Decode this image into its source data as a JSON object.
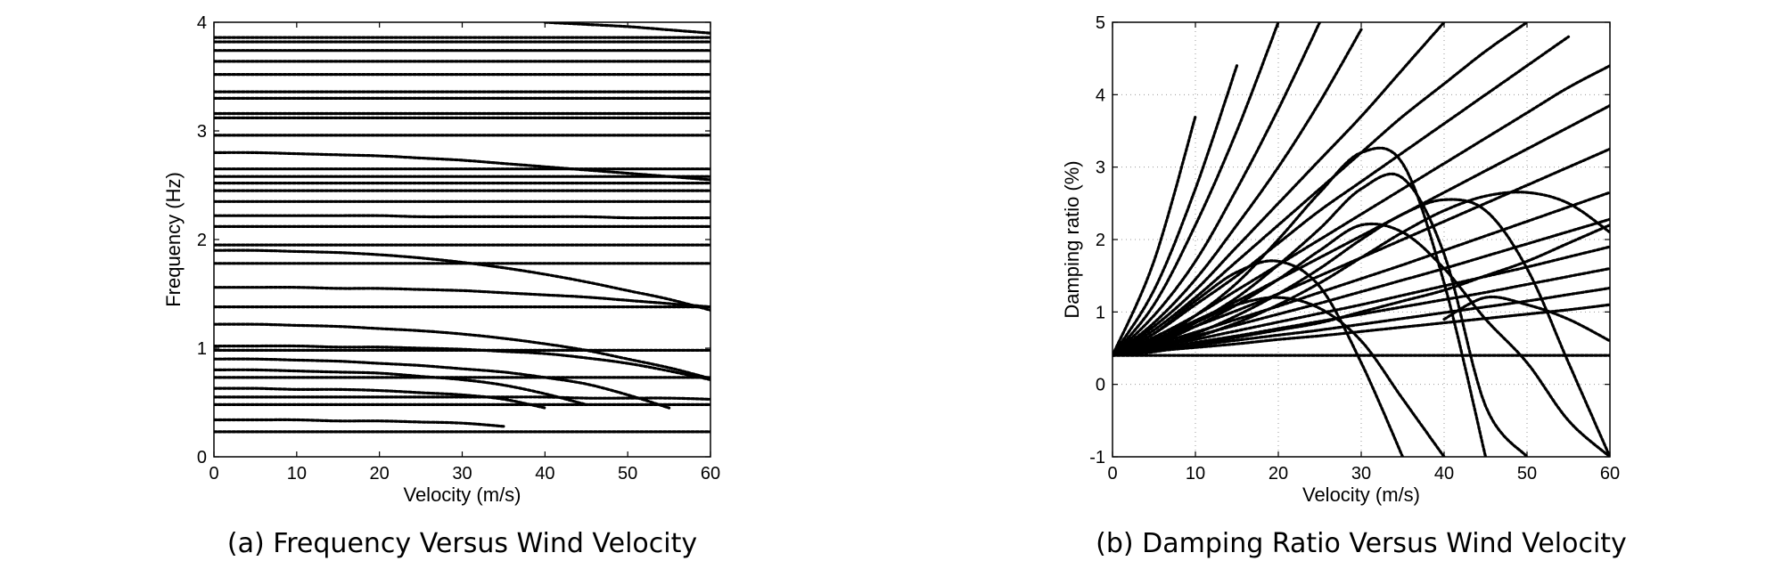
{
  "chart_data": [
    {
      "type": "line",
      "caption": "(a) Frequency Versus Wind Velocity",
      "xlabel": "Velocity (m/s)",
      "ylabel": "Frequency (Hz)",
      "xlim": [
        0,
        60
      ],
      "ylim": [
        0,
        4
      ],
      "xticks": [
        "0",
        "10",
        "20",
        "30",
        "40",
        "50",
        "60"
      ],
      "yticks": [
        "0",
        "1",
        "2",
        "3",
        "4"
      ],
      "grid": false,
      "marker": "dot",
      "x": [
        0,
        5,
        10,
        15,
        20,
        25,
        30,
        35,
        40,
        45,
        50,
        55,
        60
      ],
      "series": [
        {
          "values": [
            0.23,
            0.23,
            0.23,
            0.23,
            0.23,
            0.23,
            0.23,
            0.23,
            0.23,
            0.23,
            0.23,
            0.23,
            0.23
          ]
        },
        {
          "values": [
            0.34,
            0.34,
            0.34,
            0.33,
            0.33,
            0.32,
            0.31,
            0.28,
            null,
            null,
            null,
            null,
            null
          ]
        },
        {
          "values": [
            0.48,
            0.48,
            0.48,
            0.48,
            0.48,
            0.48,
            0.48,
            0.48,
            0.48,
            0.48,
            0.48,
            0.48,
            0.48
          ]
        },
        {
          "values": [
            0.55,
            0.55,
            0.55,
            0.55,
            0.55,
            0.55,
            0.55,
            0.55,
            0.55,
            0.54,
            0.54,
            0.54,
            0.53
          ]
        },
        {
          "values": [
            0.63,
            0.63,
            0.62,
            0.62,
            0.61,
            0.59,
            0.57,
            0.53,
            0.45,
            null,
            null,
            null,
            null
          ]
        },
        {
          "values": [
            0.73,
            0.73,
            0.73,
            0.73,
            0.73,
            0.73,
            0.73,
            0.73,
            0.73,
            0.73,
            0.73,
            0.73,
            0.73
          ]
        },
        {
          "values": [
            0.8,
            0.8,
            0.79,
            0.78,
            0.77,
            0.74,
            0.71,
            0.66,
            0.58,
            0.48,
            null,
            null,
            null
          ]
        },
        {
          "values": [
            0.9,
            0.9,
            0.89,
            0.88,
            0.86,
            0.84,
            0.81,
            0.78,
            0.73,
            0.67,
            0.57,
            0.45,
            null
          ]
        },
        {
          "values": [
            0.98,
            0.98,
            0.98,
            0.98,
            0.98,
            0.98,
            0.98,
            0.98,
            0.98,
            0.98,
            0.98,
            0.98,
            0.98
          ]
        },
        {
          "values": [
            1.02,
            1.02,
            1.02,
            1.01,
            1.01,
            1.0,
            0.99,
            0.97,
            0.95,
            0.91,
            0.86,
            0.79,
            0.71
          ]
        },
        {
          "values": [
            1.22,
            1.22,
            1.21,
            1.2,
            1.18,
            1.16,
            1.13,
            1.09,
            1.04,
            0.98,
            0.9,
            0.82,
            0.72
          ]
        },
        {
          "values": [
            1.38,
            1.38,
            1.38,
            1.38,
            1.38,
            1.38,
            1.38,
            1.38,
            1.38,
            1.38,
            1.38,
            1.38,
            1.38
          ]
        },
        {
          "values": [
            1.56,
            1.56,
            1.56,
            1.55,
            1.55,
            1.54,
            1.53,
            1.51,
            1.49,
            1.47,
            1.44,
            1.41,
            1.38
          ]
        },
        {
          "values": [
            1.78,
            1.78,
            1.78,
            1.78,
            1.78,
            1.78,
            1.78,
            1.78,
            1.78,
            1.78,
            1.78,
            1.78,
            1.78
          ]
        },
        {
          "values": [
            1.9,
            1.9,
            1.89,
            1.88,
            1.86,
            1.83,
            1.79,
            1.74,
            1.68,
            1.61,
            1.53,
            1.45,
            1.35
          ]
        },
        {
          "values": [
            1.95,
            1.95,
            1.95,
            1.95,
            1.95,
            1.95,
            1.95,
            1.95,
            1.95,
            1.95,
            1.95,
            1.95,
            1.95
          ]
        },
        {
          "values": [
            2.12,
            2.12,
            2.12,
            2.12,
            2.12,
            2.12,
            2.12,
            2.12,
            2.12,
            2.12,
            2.12,
            2.12,
            2.12
          ]
        },
        {
          "values": [
            2.22,
            2.22,
            2.22,
            2.22,
            2.22,
            2.21,
            2.21,
            2.21,
            2.21,
            2.21,
            2.2,
            2.2,
            2.2
          ]
        },
        {
          "values": [
            2.35,
            2.35,
            2.35,
            2.35,
            2.35,
            2.35,
            2.35,
            2.35,
            2.35,
            2.35,
            2.35,
            2.35,
            2.35
          ]
        },
        {
          "values": [
            2.45,
            2.45,
            2.45,
            2.45,
            2.45,
            2.45,
            2.45,
            2.45,
            2.45,
            2.45,
            2.45,
            2.45,
            2.45
          ]
        },
        {
          "values": [
            2.52,
            2.52,
            2.52,
            2.52,
            2.52,
            2.52,
            2.52,
            2.52,
            2.52,
            2.52,
            2.52,
            2.52,
            2.52
          ]
        },
        {
          "values": [
            2.58,
            2.58,
            2.58,
            2.58,
            2.58,
            2.58,
            2.58,
            2.58,
            2.58,
            2.58,
            2.58,
            2.58,
            2.58
          ]
        },
        {
          "values": [
            2.65,
            2.65,
            2.65,
            2.65,
            2.65,
            2.65,
            2.65,
            2.65,
            2.65,
            2.65,
            2.65,
            2.65,
            2.65
          ]
        },
        {
          "values": [
            2.8,
            2.8,
            2.79,
            2.78,
            2.77,
            2.75,
            2.73,
            2.7,
            2.67,
            2.64,
            2.61,
            2.58,
            2.55
          ]
        },
        {
          "values": [
            2.96,
            2.96,
            2.96,
            2.96,
            2.96,
            2.96,
            2.96,
            2.96,
            2.96,
            2.96,
            2.96,
            2.96,
            2.96
          ]
        },
        {
          "values": [
            3.12,
            3.12,
            3.12,
            3.12,
            3.12,
            3.12,
            3.12,
            3.12,
            3.12,
            3.12,
            3.12,
            3.12,
            3.12
          ]
        },
        {
          "values": [
            3.16,
            3.16,
            3.16,
            3.16,
            3.16,
            3.16,
            3.16,
            3.16,
            3.16,
            3.16,
            3.16,
            3.16,
            3.16
          ]
        },
        {
          "values": [
            3.3,
            3.3,
            3.3,
            3.3,
            3.3,
            3.3,
            3.3,
            3.3,
            3.3,
            3.3,
            3.3,
            3.3,
            3.3
          ]
        },
        {
          "values": [
            3.36,
            3.36,
            3.36,
            3.36,
            3.36,
            3.36,
            3.36,
            3.36,
            3.36,
            3.36,
            3.36,
            3.36,
            3.36
          ]
        },
        {
          "values": [
            3.52,
            3.52,
            3.52,
            3.52,
            3.52,
            3.52,
            3.52,
            3.52,
            3.52,
            3.52,
            3.52,
            3.52,
            3.52
          ]
        },
        {
          "values": [
            3.64,
            3.64,
            3.64,
            3.64,
            3.64,
            3.64,
            3.64,
            3.64,
            3.64,
            3.64,
            3.64,
            3.64,
            3.64
          ]
        },
        {
          "values": [
            3.74,
            3.74,
            3.74,
            3.74,
            3.74,
            3.74,
            3.74,
            3.74,
            3.74,
            3.74,
            3.74,
            3.74,
            3.74
          ]
        },
        {
          "values": [
            3.82,
            3.82,
            3.82,
            3.82,
            3.82,
            3.82,
            3.82,
            3.82,
            3.82,
            3.82,
            3.82,
            3.82,
            3.82
          ]
        },
        {
          "values": [
            3.86,
            3.86,
            3.86,
            3.86,
            3.86,
            3.86,
            3.86,
            3.86,
            3.86,
            3.86,
            3.86,
            3.86,
            3.86
          ]
        },
        {
          "values": [
            null,
            null,
            null,
            null,
            null,
            null,
            null,
            null,
            4.0,
            3.98,
            3.96,
            3.93,
            3.9
          ]
        }
      ]
    },
    {
      "type": "line",
      "caption": "(b) Damping Ratio Versus Wind Velocity",
      "xlabel": "Velocity (m/s)",
      "ylabel": "Damping ratio (%)",
      "xlim": [
        0,
        60
      ],
      "ylim": [
        -1,
        5
      ],
      "xticks": [
        "0",
        "10",
        "20",
        "30",
        "40",
        "50",
        "60"
      ],
      "yticks": [
        "-1",
        "0",
        "1",
        "2",
        "3",
        "4",
        "5"
      ],
      "grid": true,
      "marker": "dot",
      "x": [
        0,
        5,
        10,
        15,
        20,
        25,
        30,
        35,
        40,
        45,
        50,
        55,
        60
      ],
      "series": [
        {
          "values": [
            0.4,
            0.4,
            0.4,
            0.4,
            0.4,
            0.4,
            0.4,
            0.4,
            0.4,
            0.4,
            0.4,
            0.4,
            0.4
          ]
        },
        {
          "values": [
            0.4,
            1.7,
            3.7,
            null,
            null,
            null,
            null,
            null,
            null,
            null,
            null,
            null,
            null
          ]
        },
        {
          "values": [
            0.4,
            1.3,
            2.7,
            4.4,
            null,
            null,
            null,
            null,
            null,
            null,
            null,
            null,
            null
          ]
        },
        {
          "values": [
            0.4,
            1.1,
            2.2,
            3.5,
            5.0,
            null,
            null,
            null,
            null,
            null,
            null,
            null,
            null
          ]
        },
        {
          "values": [
            0.4,
            0.95,
            1.7,
            2.7,
            3.8,
            5.0,
            null,
            null,
            null,
            null,
            null,
            null,
            null
          ]
        },
        {
          "values": [
            0.4,
            0.85,
            1.45,
            2.2,
            3.0,
            3.9,
            4.9,
            null,
            null,
            null,
            null,
            null,
            null
          ]
        },
        {
          "values": [
            0.4,
            0.8,
            1.3,
            1.9,
            2.5,
            3.1,
            3.7,
            4.35,
            5.0,
            null,
            null,
            null,
            null
          ]
        },
        {
          "values": [
            0.4,
            0.75,
            1.2,
            1.7,
            2.2,
            2.7,
            3.2,
            3.7,
            4.15,
            4.6,
            5.0,
            null,
            null
          ]
        },
        {
          "values": [
            0.4,
            0.7,
            1.1,
            1.5,
            1.95,
            2.4,
            2.8,
            3.2,
            3.6,
            4.0,
            4.4,
            4.8,
            null
          ]
        },
        {
          "values": [
            0.4,
            0.65,
            0.95,
            1.3,
            1.65,
            2.0,
            2.35,
            2.7,
            3.05,
            3.4,
            3.75,
            4.1,
            4.4
          ]
        },
        {
          "values": [
            0.4,
            0.62,
            0.88,
            1.15,
            1.45,
            1.75,
            2.05,
            2.35,
            2.65,
            2.95,
            3.25,
            3.55,
            3.85
          ]
        },
        {
          "values": [
            0.4,
            0.58,
            0.8,
            1.02,
            1.25,
            1.5,
            1.75,
            2.0,
            2.25,
            2.5,
            2.75,
            3.0,
            3.25
          ]
        },
        {
          "values": [
            0.4,
            0.55,
            0.72,
            0.9,
            1.08,
            1.27,
            1.46,
            1.65,
            1.85,
            2.05,
            2.25,
            2.45,
            2.65
          ]
        },
        {
          "values": [
            0.4,
            0.53,
            0.67,
            0.82,
            0.97,
            1.12,
            1.28,
            1.44,
            1.6,
            1.77,
            1.94,
            2.11,
            2.28
          ]
        },
        {
          "values": [
            0.4,
            0.51,
            0.62,
            0.74,
            0.86,
            0.98,
            1.1,
            1.23,
            1.36,
            1.49,
            1.62,
            1.76,
            1.9
          ]
        },
        {
          "values": [
            0.4,
            0.49,
            0.58,
            0.67,
            0.77,
            0.87,
            0.97,
            1.07,
            1.17,
            1.27,
            1.38,
            1.49,
            1.6
          ]
        },
        {
          "values": [
            0.4,
            0.47,
            0.54,
            0.61,
            0.68,
            0.75,
            0.83,
            0.91,
            0.99,
            1.07,
            1.15,
            1.24,
            1.33
          ]
        },
        {
          "values": [
            0.4,
            0.46,
            0.51,
            0.56,
            0.62,
            0.67,
            0.73,
            0.79,
            0.85,
            0.91,
            0.97,
            1.03,
            1.1
          ]
        },
        {
          "values": [
            0.4,
            0.7,
            1.15,
            1.55,
            1.7,
            1.35,
            0.3,
            -1.0,
            null,
            null,
            null,
            null,
            null
          ]
        },
        {
          "values": [
            0.4,
            0.6,
            0.95,
            1.4,
            2.0,
            2.65,
            3.2,
            3.05,
            1.4,
            -1.0,
            null,
            null,
            null
          ]
        },
        {
          "values": [
            0.4,
            0.55,
            0.85,
            1.2,
            1.65,
            2.15,
            2.7,
            2.85,
            1.8,
            -0.3,
            -1.0,
            null,
            null
          ]
        },
        {
          "values": [
            0.4,
            0.55,
            0.8,
            1.1,
            1.45,
            1.85,
            2.2,
            2.1,
            1.6,
            0.9,
            0.3,
            -0.5,
            -1.0
          ]
        },
        {
          "values": [
            0.4,
            0.5,
            0.7,
            0.95,
            1.25,
            1.6,
            2.0,
            2.35,
            2.55,
            2.4,
            1.6,
            0.3,
            -1.0
          ]
        },
        {
          "values": [
            0.4,
            0.5,
            0.65,
            0.85,
            1.1,
            1.4,
            1.75,
            2.1,
            2.4,
            2.6,
            2.65,
            2.5,
            2.1
          ]
        },
        {
          "values": [
            0.4,
            0.45,
            0.55,
            0.65,
            0.75,
            0.85,
            1.0,
            1.15,
            1.3,
            1.5,
            1.7,
            1.95,
            2.2
          ]
        },
        {
          "values": [
            0.4,
            0.6,
            0.85,
            1.1,
            1.2,
            1.05,
            0.6,
            -0.2,
            -1.0,
            null,
            null,
            null,
            null
          ]
        },
        {
          "values": [
            null,
            null,
            null,
            null,
            null,
            null,
            null,
            null,
            0.9,
            1.2,
            1.1,
            0.9,
            0.6
          ]
        }
      ]
    }
  ]
}
